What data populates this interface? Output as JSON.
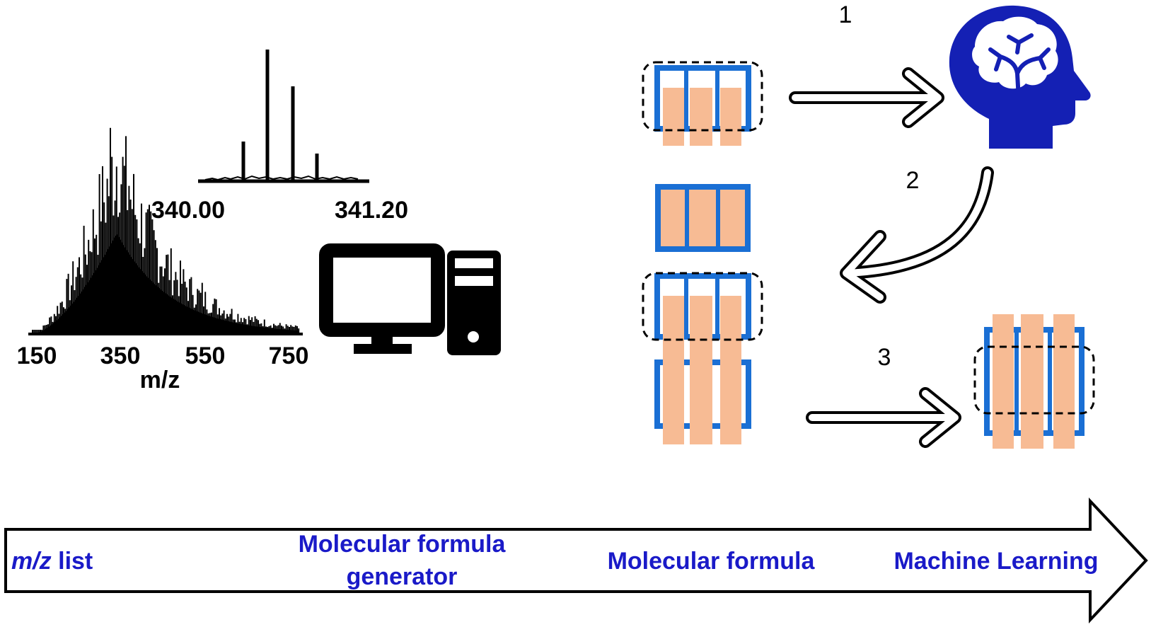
{
  "colors": {
    "stage_text": "#1a1ac8",
    "brain_blue": "#1420b4",
    "bar_blue": "#1a6fd4",
    "bar_orange": "#f7bb94",
    "line": "#000000"
  },
  "spectrum": {
    "x_ticks": [
      "150",
      "350",
      "550",
      "750"
    ],
    "x_label": "m/z",
    "inset_ticks": [
      "340.00",
      "341.20"
    ]
  },
  "steps": [
    "1",
    "2",
    "3"
  ],
  "icons": {
    "computer": "computer-icon",
    "brain": "brain-head-icon"
  },
  "stages": {
    "mz_prefix": "m/z",
    "mz_suffix": " list",
    "generator_line1": "Molecular formula",
    "generator_line2": "generator",
    "formula": "Molecular formula",
    "ml": "Machine Learning"
  }
}
